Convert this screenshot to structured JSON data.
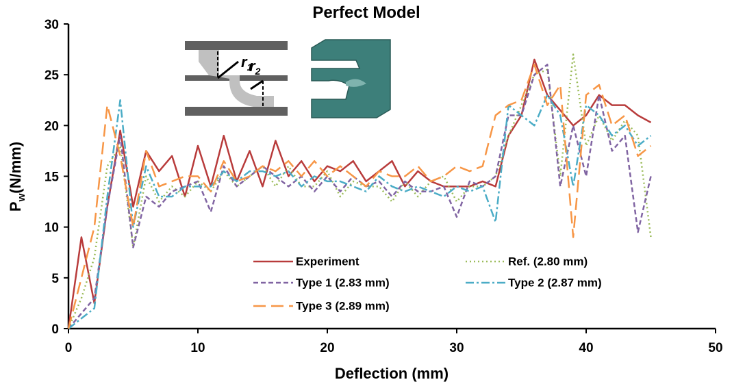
{
  "chart_data": {
    "type": "line",
    "title": "Perfect Model",
    "xlabel": "Deflection (mm)",
    "ylabel": [
      "P",
      "w",
      "(N/mm)"
    ],
    "inset_labels": [
      [
        "r",
        "1"
      ],
      [
        "r",
        "2"
      ]
    ],
    "x": [
      0,
      1,
      2,
      3,
      4,
      5,
      6,
      7,
      8,
      9,
      10,
      11,
      12,
      13,
      14,
      15,
      16,
      17,
      18,
      19,
      20,
      21,
      22,
      23,
      24,
      25,
      26,
      27,
      28,
      29,
      30,
      31,
      32,
      33,
      34,
      35,
      36,
      37,
      38,
      39,
      40,
      41,
      42,
      43,
      44,
      45
    ],
    "series": [
      {
        "name": "Experiment",
        "color": "#b83b3b",
        "style": "solid",
        "values": [
          0,
          9,
          2.5,
          12,
          19.5,
          12,
          17.5,
          15.5,
          17,
          13,
          18,
          14,
          19,
          14.5,
          17.5,
          14,
          18.5,
          15,
          16.5,
          14.5,
          16,
          15.5,
          16.5,
          14.5,
          15.5,
          16.5,
          14,
          15.5,
          14.5,
          14,
          14,
          14,
          14.5,
          14,
          19,
          21,
          26.5,
          23,
          21.5,
          20,
          21,
          23,
          22,
          22,
          21,
          20.3
        ]
      },
      {
        "name": "Ref. (2.80 mm)",
        "color": "#9bbb59",
        "style": "dotted",
        "values": [
          0,
          3,
          7,
          16,
          18,
          8,
          15,
          12.5,
          14,
          13,
          14.5,
          13.5,
          15.5,
          14,
          15,
          16,
          14,
          16,
          14,
          14,
          15.5,
          13,
          14.5,
          14,
          14,
          12.5,
          14.5,
          13,
          14.5,
          15,
          12.5,
          14,
          14,
          15,
          19,
          22,
          25,
          25.5,
          15,
          27,
          18,
          21,
          18.5,
          20.5,
          19,
          9
        ]
      },
      {
        "name": "Type 1 (2.83 mm)",
        "color": "#8064a2",
        "style": "dashed",
        "values": [
          0,
          1.5,
          3,
          12,
          19,
          8,
          13,
          12,
          13.5,
          14,
          14.5,
          11.5,
          16,
          14,
          15,
          16,
          15,
          14,
          15,
          13.5,
          15,
          13.5,
          15,
          14,
          14.5,
          13,
          14.5,
          13.5,
          13.5,
          14,
          11,
          14.5,
          14,
          15,
          21,
          21,
          25,
          26,
          14,
          20,
          15,
          23,
          17.5,
          19,
          9.5,
          15
        ]
      },
      {
        "name": "Type 2 (2.87 mm)",
        "color": "#4bacc6",
        "style": "dashdot",
        "values": [
          0,
          1,
          2,
          13,
          22.5,
          10,
          16,
          13,
          13,
          14,
          14,
          14,
          15.5,
          14.5,
          15.5,
          15.5,
          15,
          15.5,
          14,
          15,
          14.5,
          14.5,
          14,
          13.5,
          15,
          14,
          13.5,
          14,
          13.5,
          13,
          14,
          13.5,
          14,
          10.5,
          22,
          21,
          20,
          23,
          21,
          14,
          22,
          21,
          19,
          20,
          18,
          19
        ]
      },
      {
        "name": "Type 3 (2.89 mm)",
        "color": "#f79646",
        "style": "longdash",
        "values": [
          0,
          5,
          10,
          22,
          17,
          10,
          17.5,
          14,
          14.5,
          15,
          15,
          13.5,
          16.5,
          14.5,
          15,
          16,
          15.5,
          16.5,
          15,
          16.5,
          15,
          16,
          15,
          14,
          15.5,
          15,
          15,
          16,
          14.5,
          15,
          16,
          15.5,
          16,
          21,
          22,
          22.5,
          26,
          22,
          24,
          9,
          23,
          24,
          20,
          21,
          17,
          18
        ]
      }
    ],
    "xlim": [
      0,
      50
    ],
    "xticks": [
      0,
      10,
      20,
      30,
      40,
      50
    ],
    "ylim": [
      0,
      30
    ],
    "yticks": [
      0,
      5,
      10,
      15,
      20,
      25,
      30
    ],
    "grid": false
  }
}
